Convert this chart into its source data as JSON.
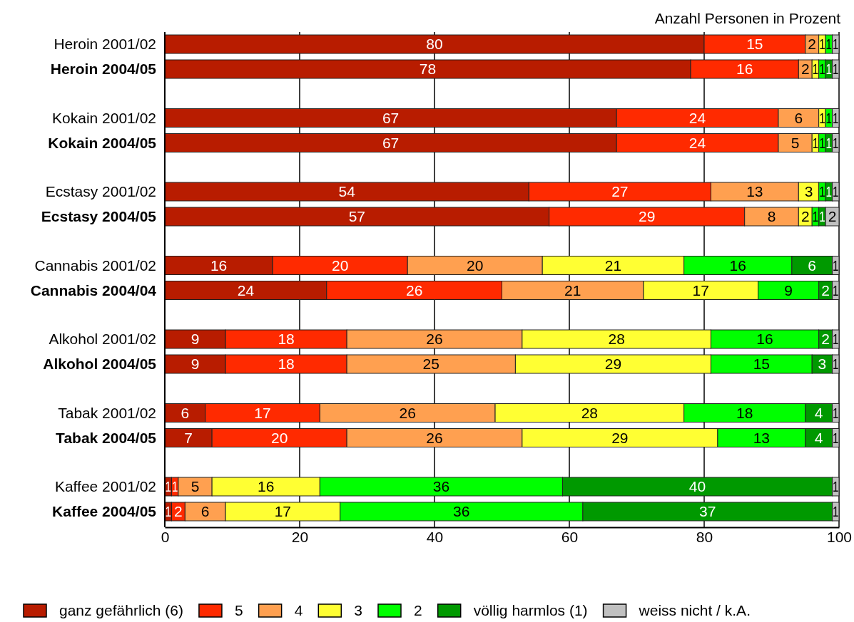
{
  "chart_data": {
    "type": "bar",
    "orientation": "horizontal",
    "stacked": true,
    "xlabel": "Anzahl Personen in Prozent",
    "categories": [
      "Heroin 2001/02",
      "Heroin 2004/05",
      "Kokain 2001/02",
      "Kokain 2004/05",
      "Ecstasy 2001/02",
      "Ecstasy 2004/05",
      "Cannabis 2001/02",
      "Cannabis 2004/04",
      "Alkohol 2001/02",
      "Alkohol 2004/05",
      "Tabak 2001/02",
      "Tabak 2004/05",
      "Kaffee 2001/02",
      "Kaffee 2004/05"
    ],
    "series": [
      {
        "name": "ganz gefährlich (6)",
        "color": "#b81c00",
        "values": [
          80,
          78,
          67,
          67,
          54,
          57,
          16,
          24,
          9,
          9,
          6,
          7,
          1,
          1
        ]
      },
      {
        "name": "5",
        "color": "#ff2a00",
        "values": [
          15,
          16,
          24,
          24,
          27,
          29,
          20,
          26,
          18,
          18,
          17,
          20,
          1,
          2
        ]
      },
      {
        "name": "4",
        "color": "#ffa050",
        "values": [
          2,
          2,
          6,
          5,
          13,
          8,
          20,
          21,
          26,
          25,
          26,
          26,
          5,
          6
        ]
      },
      {
        "name": "3",
        "color": "#ffff33",
        "values": [
          1,
          1,
          1,
          1,
          3,
          2,
          21,
          17,
          28,
          29,
          28,
          29,
          16,
          17
        ]
      },
      {
        "name": "2",
        "color": "#00ff00",
        "values": [
          1,
          1,
          1,
          1,
          1,
          1,
          16,
          9,
          16,
          15,
          18,
          13,
          36,
          36
        ]
      },
      {
        "name": "völlig harmlos (1)",
        "color": "#009900",
        "values": [
          null,
          1,
          null,
          1,
          1,
          1,
          6,
          2,
          2,
          3,
          4,
          4,
          40,
          37
        ]
      },
      {
        "name": "weiss nicht / k.A.",
        "color": "#c0c0c0",
        "values": [
          1,
          1,
          1,
          1,
          1,
          2,
          1,
          1,
          1,
          1,
          1,
          1,
          1,
          1
        ]
      }
    ],
    "xlim": [
      0,
      100
    ],
    "xticks": [
      0,
      20,
      40,
      60,
      80,
      100
    ],
    "grid": "x",
    "data_labels": true,
    "legend": "bottom"
  }
}
